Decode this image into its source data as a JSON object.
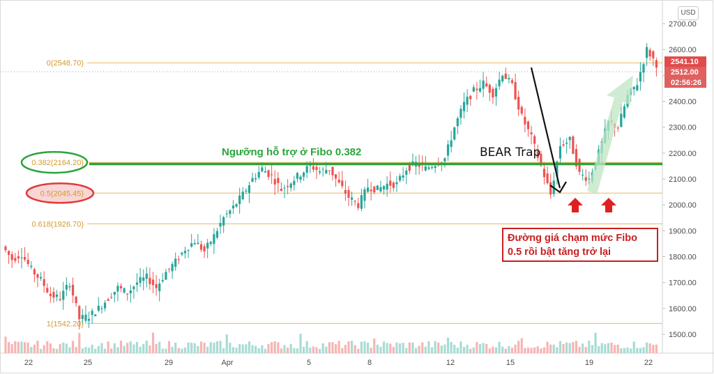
{
  "currency": "USD",
  "support_annotation": "Ngưỡng hỗ trợ ở Fibo 0.382",
  "bear_trap_label": "BEAR Trap",
  "note_text": [
    "Đường giá chạm mức Fibo",
    "0.5 rồi bật tăng trở lại"
  ],
  "price_tags": [
    {
      "text": "2541.10",
      "price": 2541.1,
      "color": "#e04b4b"
    },
    {
      "text": "2512.00",
      "price": 2512.0,
      "color": "#e06060"
    },
    {
      "text": "02:56:26",
      "price": 2512.0,
      "color": "#e06060"
    }
  ],
  "colors": {
    "up": "#26a69a",
    "down": "#ef5350",
    "fib_line": "#e8b85a",
    "support_line": "#2ba43b",
    "volume_up": "#a8dcd4",
    "volume_down": "#f6b5b3",
    "highlight_green": "#2ba43b",
    "highlight_red": "#e03a3a"
  },
  "chart_data": {
    "type": "candlestick",
    "yaxis": {
      "min": 1430,
      "max": 2760,
      "ticks": [
        1500,
        1600,
        1700,
        1800,
        1900,
        2000,
        2100,
        2200,
        2300,
        2400,
        2500,
        2600,
        2700
      ],
      "tick_labels": [
        "1500.00",
        "1600.00",
        "1700.00",
        "1800.00",
        "1900.00",
        "2000.00",
        "2100.00",
        "2200.00",
        "2300.00",
        "2400.00",
        "2500.00",
        "2600.00",
        "2700.00"
      ]
    },
    "xaxis": {
      "tick_labels": [
        "22",
        "25",
        "29",
        "Apr",
        "5",
        "8",
        "12",
        "15",
        "19",
        "22"
      ]
    },
    "fib_levels": [
      {
        "label": "0(2548.70)",
        "price": 2548.7,
        "highlight": ""
      },
      {
        "label": "0.382(2164.20)",
        "price": 2164.2,
        "highlight": "green"
      },
      {
        "label": "0.5(2045.45)",
        "price": 2045.45,
        "highlight": "red"
      },
      {
        "label": "0.618(1926.70)",
        "price": 1926.7,
        "highlight": ""
      },
      {
        "label": "1(1542.20)",
        "price": 1542.2,
        "highlight": ""
      }
    ],
    "support_level": 2158,
    "path_points": [
      1840,
      1790,
      1810,
      1750,
      1710,
      1650,
      1640,
      1700,
      1560,
      1570,
      1600,
      1640,
      1680,
      1660,
      1700,
      1720,
      1680,
      1740,
      1780,
      1830,
      1860,
      1820,
      1880,
      1950,
      1990,
      2040,
      2100,
      2140,
      2110,
      2060,
      2090,
      2120,
      2150,
      2130,
      2140,
      2080,
      2030,
      2000,
      2070,
      2060,
      2080,
      2080,
      2140,
      2160,
      2140,
      2160,
      2180,
      2300,
      2390,
      2440,
      2470,
      2430,
      2510,
      2460,
      2340,
      2260,
      2150,
      2040,
      2230,
      2250,
      2120,
      2100,
      2200,
      2320,
      2300,
      2420,
      2470,
      2600,
      2545
    ],
    "candles_per_segment": 3
  }
}
